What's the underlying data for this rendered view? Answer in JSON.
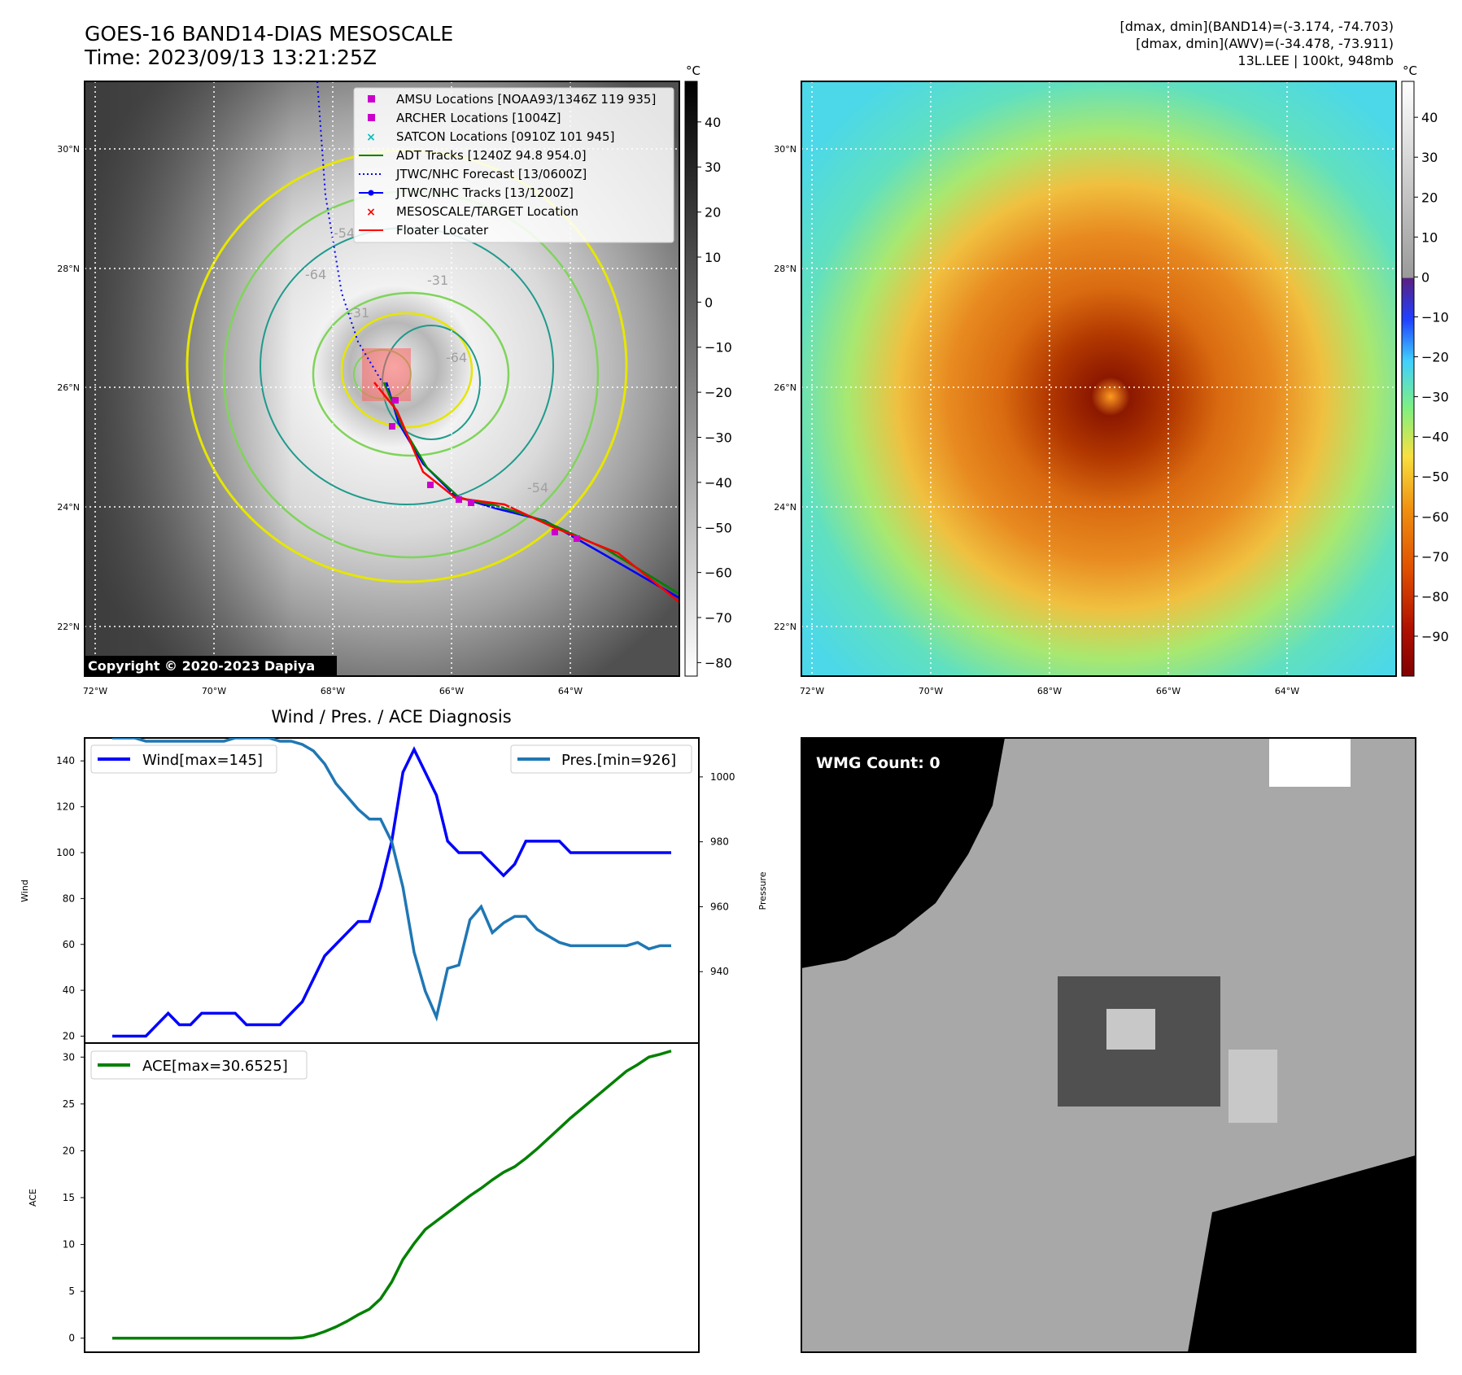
{
  "header": {
    "title": "GOES-16 BAND14-DIAS MESOSCALE",
    "time": "Time: 2023/09/13 13:21:25Z",
    "stats1": "[dmax, dmin](BAND14)=(-3.174, -74.703)",
    "stats2": "[dmax, dmin](AWV)=(-34.478, -73.911)",
    "storm": "13L.LEE | 100kt, 948mb",
    "copyright": "Copyright © 2020-2023 Dapiya"
  },
  "map": {
    "lat_labels": [
      "30°N",
      "28°N",
      "26°N",
      "24°N",
      "22°N"
    ],
    "lon_labels": [
      "72°W",
      "70°W",
      "68°W",
      "66°W",
      "64°W"
    ],
    "legend": [
      {
        "label": "AMSU Locations [NOAA93/1346Z 119 935]",
        "color": "#cc00cc",
        "marker": "square"
      },
      {
        "label": "ARCHER Locations [1004Z]",
        "color": "#cc00cc",
        "marker": "square"
      },
      {
        "label": "SATCON Locations [0910Z 101 945]",
        "color": "#00bfbf",
        "marker": "x"
      },
      {
        "label": "ADT Tracks [1240Z 94.8 954.0]",
        "color": "#008000",
        "marker": "line"
      },
      {
        "label": "JTWC/NHC Forecast [13/0600Z]",
        "color": "#0000ff",
        "marker": "dotted"
      },
      {
        "label": "JTWC/NHC Tracks [13/1200Z]",
        "color": "#0000ff",
        "marker": "line-dot"
      },
      {
        "label": "MESOSCALE/TARGET Location",
        "color": "#ff0000",
        "marker": "x"
      },
      {
        "label": "Floater Locater",
        "color": "#ff0000",
        "marker": "line"
      }
    ],
    "contour_labels": [
      "-31",
      "-54",
      "-64",
      "-31",
      "-31",
      "-64",
      "-54",
      "-31",
      "-31"
    ],
    "colorbar_unit": "°C",
    "gray_colorbar_ticks": [
      "40",
      "30",
      "20",
      "10",
      "0",
      "−10",
      "−20",
      "−30",
      "−40",
      "−50",
      "−60",
      "−70",
      "−80"
    ],
    "color_colorbar_ticks": [
      "40",
      "30",
      "20",
      "10",
      "0",
      "−10",
      "−20",
      "−30",
      "−40",
      "−50",
      "−60",
      "−70",
      "−80",
      "−90"
    ],
    "colors": {
      "contour_yellow": "#e6e600",
      "contour_lightgreen": "#7fd45a",
      "contour_teal": "#1e9a8c",
      "track_red": "#ff0000",
      "track_blue": "#0000ff",
      "track_green": "#008000"
    }
  },
  "wmg": {
    "label": "WMG Count: 0"
  },
  "chart_data": [
    {
      "type": "line",
      "title": "Wind / Pres. / ACE Diagnosis",
      "ylabel": "Wind",
      "ylabel_right": "Pressure",
      "ylim": [
        17,
        150
      ],
      "ylim_right": [
        918,
        1012
      ],
      "yticks": [
        20,
        40,
        60,
        80,
        100,
        120,
        140
      ],
      "yticks_right": [
        940,
        960,
        980,
        1000
      ],
      "x": [
        0,
        1,
        2,
        3,
        4,
        5,
        6,
        7,
        8,
        9,
        10,
        11,
        12,
        13,
        14,
        15,
        16,
        17,
        18,
        19,
        20,
        21,
        22,
        23,
        24,
        25,
        26,
        27,
        28,
        29,
        30,
        31,
        32,
        33,
        34,
        35,
        36,
        37,
        38,
        39,
        40,
        41,
        42,
        43,
        44,
        45,
        46,
        47,
        48,
        49,
        50
      ],
      "series": [
        {
          "name": "Wind[max=145]",
          "color": "#0000ff",
          "axis": "left",
          "values": [
            20,
            20,
            20,
            20,
            25,
            30,
            25,
            25,
            30,
            30,
            30,
            30,
            25,
            25,
            25,
            25,
            30,
            35,
            45,
            55,
            60,
            65,
            70,
            70,
            85,
            105,
            135,
            145,
            135,
            125,
            105,
            100,
            100,
            100,
            95,
            90,
            95,
            105,
            105,
            105,
            105,
            100,
            100,
            100,
            100,
            100,
            100,
            100,
            100,
            100,
            100
          ]
        },
        {
          "name": "Pres.[min=926]",
          "color": "#1f77b4",
          "axis": "right",
          "values": [
            1012,
            1012,
            1012,
            1011,
            1011,
            1011,
            1011,
            1011,
            1011,
            1011,
            1011,
            1012,
            1012,
            1012,
            1012,
            1011,
            1011,
            1010,
            1008,
            1004,
            998,
            994,
            990,
            987,
            987,
            980,
            966,
            946,
            934,
            926,
            941,
            942,
            956,
            960,
            952,
            955,
            957,
            957,
            953,
            951,
            949,
            948,
            948,
            948,
            948,
            948,
            948,
            949,
            947,
            948,
            948
          ]
        }
      ]
    },
    {
      "type": "line",
      "ylabel": "ACE",
      "ylim": [
        -1.5,
        31.5
      ],
      "yticks": [
        0,
        5,
        10,
        15,
        20,
        25,
        30
      ],
      "x": [
        0,
        1,
        2,
        3,
        4,
        5,
        6,
        7,
        8,
        9,
        10,
        11,
        12,
        13,
        14,
        15,
        16,
        17,
        18,
        19,
        20,
        21,
        22,
        23,
        24,
        25,
        26,
        27,
        28,
        29,
        30,
        31,
        32,
        33,
        34,
        35,
        36,
        37,
        38,
        39,
        40,
        41,
        42,
        43,
        44,
        45,
        46,
        47,
        48,
        49,
        50
      ],
      "series": [
        {
          "name": "ACE[max=30.6525]",
          "color": "#008000",
          "values": [
            0,
            0,
            0,
            0,
            0,
            0,
            0,
            0,
            0,
            0,
            0,
            0,
            0,
            0,
            0,
            0,
            0,
            0.05,
            0.3,
            0.7,
            1.2,
            1.8,
            2.5,
            3.1,
            4.2,
            6.0,
            8.4,
            10.1,
            11.6,
            12.5,
            13.4,
            14.3,
            15.2,
            16.0,
            16.9,
            17.7,
            18.3,
            19.2,
            20.2,
            21.3,
            22.4,
            23.5,
            24.5,
            25.5,
            26.5,
            27.5,
            28.5,
            29.2,
            30.0,
            30.3,
            30.6525
          ]
        }
      ]
    }
  ]
}
